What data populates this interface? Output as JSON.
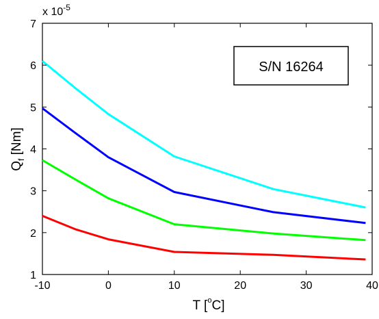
{
  "chart_data": {
    "type": "line",
    "xlabel_main": "T [",
    "xlabel_degree": "o",
    "xlabel_unit": "C]",
    "ylabel_main": "Q",
    "ylabel_sub": "f",
    "ylabel_unit": " [Nm]",
    "y_exponent_prefix": "x 10",
    "y_exponent_power": "-5",
    "annotation": "S/N 16264",
    "xlim": [
      -10,
      40
    ],
    "ylim": [
      1,
      7
    ],
    "xticks": [
      -10,
      0,
      10,
      20,
      30,
      40
    ],
    "yticks": [
      1,
      2,
      3,
      4,
      5,
      6,
      7
    ],
    "grid": false,
    "series": [
      {
        "color": "#00ffff",
        "x": [
          -10,
          -5,
          0,
          10,
          25,
          39
        ],
        "y": [
          6.1,
          5.45,
          4.83,
          3.82,
          3.04,
          2.6
        ]
      },
      {
        "color": "#0000ff",
        "x": [
          -10,
          -5,
          0,
          10,
          25,
          39
        ],
        "y": [
          4.97,
          4.38,
          3.8,
          2.97,
          2.49,
          2.23
        ]
      },
      {
        "color": "#00ff00",
        "x": [
          -10,
          -5,
          0,
          10,
          25,
          39
        ],
        "y": [
          3.73,
          3.27,
          2.82,
          2.2,
          1.98,
          1.82
        ]
      },
      {
        "color": "#ff0000",
        "x": [
          -10,
          -5,
          0,
          10,
          25,
          39
        ],
        "y": [
          2.4,
          2.08,
          1.84,
          1.54,
          1.47,
          1.36
        ]
      }
    ]
  }
}
